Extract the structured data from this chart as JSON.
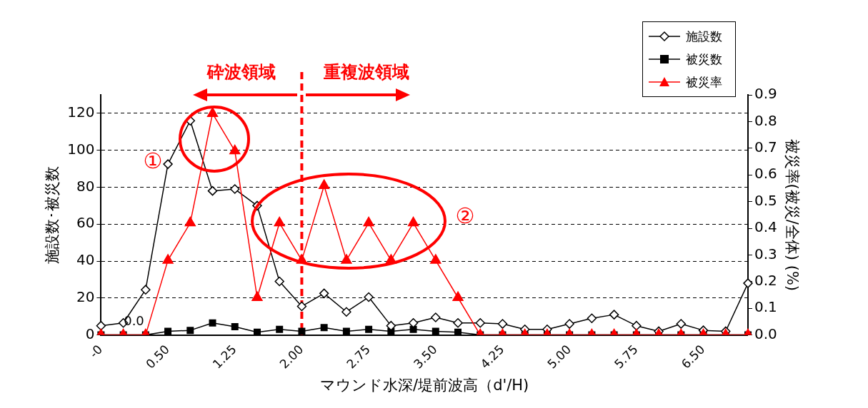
{
  "chart_data": {
    "type": "line",
    "xlabel": "マウンド水深/堤前波高（d'/H)",
    "ylabel": "施設数･被災数",
    "y2label": "被災率(被災/全体) (%)",
    "categories": [
      "-0",
      null,
      null,
      "0.50",
      null,
      null,
      "1.25",
      null,
      null,
      "2.00",
      null,
      null,
      "2.75",
      null,
      null,
      "3.50",
      null,
      null,
      "4.25",
      null,
      null,
      "5.00",
      null,
      null,
      "5.75",
      null,
      null,
      "6.50",
      null,
      null
    ],
    "series": [
      {
        "name": "施設数",
        "color": "#000000",
        "marker": "diamond",
        "values": [
          5,
          6.5,
          24.5,
          92.5,
          116,
          78,
          79,
          70,
          29,
          15.5,
          22.5,
          12.5,
          20.5,
          5,
          6.5,
          9.5,
          6.5,
          6.5,
          6,
          3,
          3,
          6,
          9,
          11,
          5,
          2,
          6,
          2.5,
          2,
          28
        ]
      },
      {
        "name": "被災数",
        "color": "#000000",
        "marker": "square",
        "values": [
          0,
          0,
          0,
          2,
          2.5,
          6.5,
          4.5,
          1.5,
          3,
          2,
          4,
          2,
          3,
          2,
          3,
          2,
          1.5,
          0,
          0,
          0,
          0,
          0,
          0,
          0,
          0,
          0,
          0,
          0,
          0,
          0
        ]
      },
      {
        "name": "被災率",
        "color": "#ff0000",
        "marker": "triangle",
        "axis": "y2",
        "values": [
          0,
          0,
          0,
          0.28,
          0.42,
          0.83,
          0.69,
          0.14,
          0.42,
          0.28,
          0.56,
          0.28,
          0.42,
          0.28,
          0.42,
          0.28,
          0.14,
          0,
          0,
          0,
          0,
          0,
          0,
          0,
          0,
          0,
          0,
          0,
          0,
          0
        ],
        "value_labels": [
          null,
          null,
          "0.0",
          null,
          null,
          null,
          null,
          null,
          null,
          null,
          null,
          null,
          null,
          null,
          null,
          null,
          null,
          null,
          null,
          null,
          null,
          null,
          null,
          null,
          null,
          null,
          null,
          null,
          null,
          null
        ]
      }
    ],
    "ylim": [
      0,
      130
    ],
    "yticks": [
      0,
      20,
      40,
      60,
      80,
      100,
      120
    ],
    "y2lim": [
      0,
      0.9
    ],
    "y2ticks": [
      {
        "value": 0,
        "label": "0.0"
      },
      {
        "value": 0.1,
        "label": "0.1"
      },
      {
        "value": 0.2,
        "label": "0.2"
      },
      {
        "value": 0.3,
        "label": "0.3"
      },
      {
        "value": 0.4,
        "label": "0.4"
      },
      {
        "value": 0.5,
        "label": "0.5"
      },
      {
        "value": 0.6,
        "label": "0.6"
      },
      {
        "value": 0.7,
        "label": "0.7"
      },
      {
        "value": 0.8,
        "label": "0.8"
      },
      {
        "value": 0.9,
        "label": "0.9"
      }
    ],
    "ref_lines": [
      {
        "axis": "x",
        "value": "2.00",
        "color": "#ff0000",
        "line_style": "dashed"
      }
    ],
    "annotations": [
      "砕波領域",
      "重複波領域",
      "①",
      "②"
    ],
    "grid": "y",
    "legend": "top right",
    "line_style": "solid"
  }
}
